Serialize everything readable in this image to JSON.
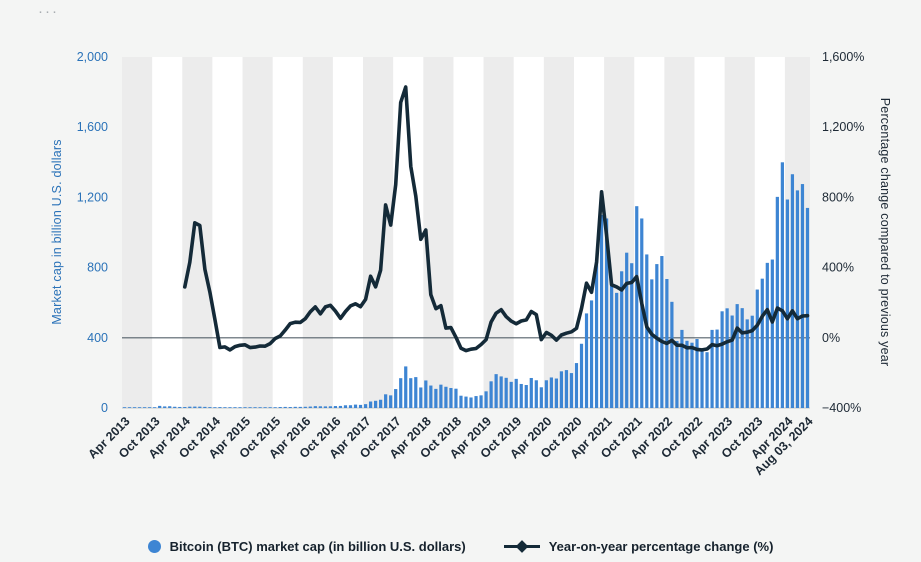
{
  "icons": {
    "top_left": "ellipsis-icon"
  },
  "legend": [
    {
      "label": "Bitcoin (BTC) market cap (in billion U.S. dollars)",
      "marker": "circle",
      "color": "#3d85d3"
    },
    {
      "label": "Year-on-year percentage change (%)",
      "marker": "line-diamond",
      "color": "#142a38"
    }
  ],
  "chart_data": {
    "type": "combo-bar-line",
    "frequency": "monthly",
    "x_start": "Apr 2013",
    "x_end": "Aug 03, 2024",
    "left_axis": {
      "title": "Market cap in billion U.S. dollars",
      "range": [
        0,
        2000
      ],
      "ticks": [
        0,
        400,
        800,
        1200,
        1600,
        2000
      ],
      "tick_labels": [
        "0",
        "400",
        "800",
        "1,200",
        "1,600",
        "2,000"
      ],
      "color": "#2a72b8"
    },
    "right_axis": {
      "title": "Percentage change compared to previous year",
      "range": [
        -400,
        1600
      ],
      "ticks": [
        -400,
        0,
        400,
        800,
        1200,
        1600
      ],
      "tick_labels": [
        "−400%",
        "0%",
        "400%",
        "800%",
        "1,200%",
        "1,600%"
      ],
      "color": "#1d2935"
    },
    "x_ticks": [
      {
        "label": "Apr 2013",
        "month_index": 0
      },
      {
        "label": "Oct 2013",
        "month_index": 6
      },
      {
        "label": "Apr 2014",
        "month_index": 12
      },
      {
        "label": "Oct 2014",
        "month_index": 18
      },
      {
        "label": "Apr 2015",
        "month_index": 24
      },
      {
        "label": "Oct 2015",
        "month_index": 30
      },
      {
        "label": "Apr 2016",
        "month_index": 36
      },
      {
        "label": "Oct 2016",
        "month_index": 42
      },
      {
        "label": "Apr 2017",
        "month_index": 48
      },
      {
        "label": "Oct 2017",
        "month_index": 54
      },
      {
        "label": "Apr 2018",
        "month_index": 60
      },
      {
        "label": "Oct 2018",
        "month_index": 66
      },
      {
        "label": "Apr 2019",
        "month_index": 72
      },
      {
        "label": "Oct 2019",
        "month_index": 78
      },
      {
        "label": "Apr 2020",
        "month_index": 84
      },
      {
        "label": "Oct 2020",
        "month_index": 90
      },
      {
        "label": "Apr 2021",
        "month_index": 96
      },
      {
        "label": "Oct 2021",
        "month_index": 102
      },
      {
        "label": "Apr 2022",
        "month_index": 108
      },
      {
        "label": "Oct 2022",
        "month_index": 114
      },
      {
        "label": "Apr 2023",
        "month_index": 120
      },
      {
        "label": "Oct 2023",
        "month_index": 126
      },
      {
        "label": "Apr 2024",
        "month_index": 132
      },
      {
        "label": "Aug 03, 2024",
        "month_index": 136
      }
    ],
    "series": [
      {
        "name": "Bitcoin (BTC) market cap (in billion U.S. dollars)",
        "type": "bar",
        "axis": "left",
        "color": "#3d85d3",
        "start_month_index": 0,
        "values": [
          1.2,
          1.5,
          1.1,
          1.0,
          1.3,
          1.4,
          2.2,
          12,
          9,
          10,
          7,
          6,
          5.5,
          7.5,
          8,
          7.7,
          6.4,
          5.1,
          4.6,
          5.1,
          4.3,
          3.1,
          3.5,
          3.4,
          3.3,
          3.3,
          3.8,
          4.1,
          3.3,
          3.4,
          4.4,
          5.6,
          6.2,
          5.6,
          6.6,
          6.4,
          6.9,
          8.2,
          10.5,
          9.7,
          9.1,
          9.7,
          11.1,
          11.8,
          15.5,
          15.8,
          19.4,
          17.7,
          22,
          37,
          41,
          47,
          78,
          72,
          108,
          170,
          237,
          170,
          176,
          117,
          157,
          128,
          109,
          133,
          121,
          114,
          110,
          70,
          65,
          60,
          68,
          72,
          95,
          152,
          193,
          180,
          172,
          149,
          166,
          137,
          131,
          171,
          158,
          118,
          158,
          174,
          168,
          209,
          216,
          199,
          256,
          366,
          539,
          613,
          840,
          1100,
          1080,
          700,
          656,
          779,
          885,
          825,
          1150,
          1080,
          875,
          733,
          820,
          866,
          735,
          605,
          382,
          445,
          383,
          372,
          393,
          330,
          318,
          445,
          447,
          551,
          568,
          527,
          592,
          569,
          505,
          526,
          675,
          737,
          827,
          846,
          1203,
          1400,
          1188,
          1332,
          1240,
          1276,
          1140
        ]
      },
      {
        "name": "Year-on-year percentage change (%)",
        "type": "line",
        "axis": "right",
        "color": "#142a38",
        "start_month_index": 12,
        "values": [
          290,
          430,
          655,
          640,
          390,
          260,
          105,
          -55,
          -52,
          -69,
          -50,
          -43,
          -40,
          -56,
          -53,
          -47,
          -48,
          -33,
          -4,
          10,
          44,
          81,
          89,
          88,
          109,
          148,
          176,
          137,
          176,
          185,
          152,
          111,
          150,
          182,
          194,
          177,
          219,
          351,
          290,
          385,
          757,
          642,
          873,
          1341,
          1429,
          976,
          807,
          561,
          614,
          246,
          166,
          183,
          55,
          58,
          2,
          -59,
          -73,
          -65,
          -61,
          -38,
          -10,
          90,
          140,
          160,
          120,
          95,
          80,
          96,
          102,
          150,
          132,
          -10,
          30,
          14,
          -13,
          16,
          26,
          34,
          54,
          167,
          311,
          259,
          432,
          832,
          583,
          302,
          290,
          273,
          310,
          315,
          349,
          195,
          62,
          20,
          -2,
          -21,
          -32,
          -14,
          -42,
          -43,
          -57,
          -55,
          -66,
          -69,
          -64,
          -39,
          -45,
          -36,
          -23,
          -13,
          55,
          28,
          32,
          41,
          72,
          123,
          160,
          90,
          169,
          154,
          109,
          153,
          109,
          124,
          126
        ]
      }
    ],
    "styling": {
      "band_color": "#ececec",
      "plot_bg": "#ffffff",
      "zero_line_color": "#55606a",
      "baseline_color": "#c2c6c9",
      "x_label_color": "#1d2935"
    }
  }
}
